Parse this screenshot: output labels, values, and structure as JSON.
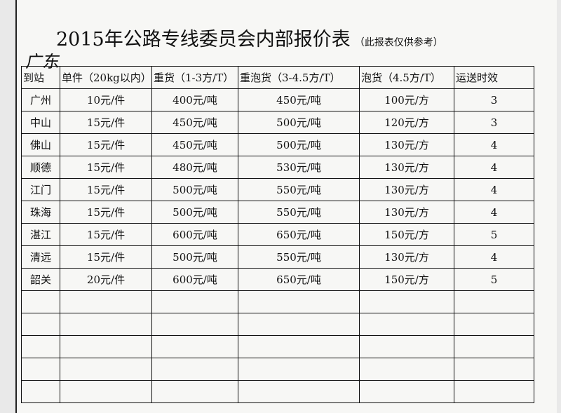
{
  "title": "2015年公路专线委员会内部报价表",
  "title_note": "（此报表仅供参考）",
  "region": "广东",
  "columns": [
    "到站",
    "单件（20kg以内）",
    "重货（1-3方/T）",
    "重泡货（3-4.5方/T）",
    "泡货（4.5方/T）",
    "运送时效"
  ],
  "rows": [
    [
      "广州",
      "10元/件",
      "400元/吨",
      "450元/吨",
      "100元/方",
      "3"
    ],
    [
      "中山",
      "15元/件",
      "450元/吨",
      "500元/吨",
      "120元/方",
      "3"
    ],
    [
      "佛山",
      "15元/件",
      "450元/吨",
      "500元/吨",
      "130元/方",
      "4"
    ],
    [
      "顺德",
      "15元/件",
      "480元/吨",
      "530元/吨",
      "130元/方",
      "4"
    ],
    [
      "江门",
      "15元/件",
      "500元/吨",
      "550元/吨",
      "130元/方",
      "4"
    ],
    [
      "珠海",
      "15元/件",
      "500元/吨",
      "550元/吨",
      "130元/方",
      "4"
    ],
    [
      "湛江",
      "15元/件",
      "600元/吨",
      "650元/吨",
      "150元/方",
      "5"
    ],
    [
      "清远",
      "15元/件",
      "500元/吨",
      "550元/吨",
      "130元/方",
      "4"
    ],
    [
      "韶关",
      "20元/件",
      "600元/吨",
      "650元/吨",
      "150元/方",
      "5"
    ]
  ],
  "empty_rows": 5
}
